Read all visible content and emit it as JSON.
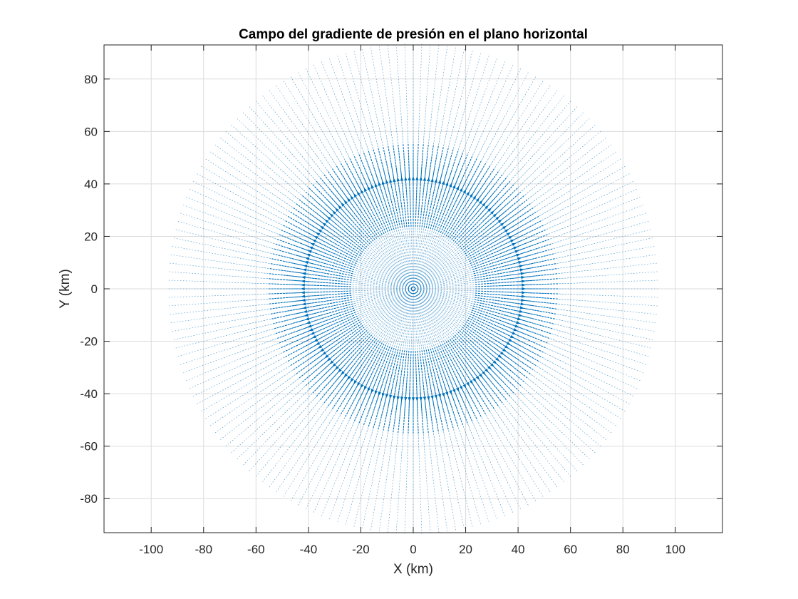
{
  "chart_data": {
    "type": "quiver",
    "title": "Campo del gradiente de presión en el plano horizontal",
    "xlabel": "X (km)",
    "ylabel": "Y (km)",
    "xlim": [
      -118,
      118
    ],
    "ylim": [
      -93,
      93
    ],
    "xticks": [
      -100,
      -80,
      -60,
      -40,
      -20,
      0,
      20,
      40,
      60,
      80,
      100
    ],
    "yticks": [
      -80,
      -60,
      -40,
      -20,
      0,
      20,
      40,
      60,
      80
    ],
    "xtick_labels": [
      "-100",
      "-80",
      "-60",
      "-40",
      "-20",
      "0",
      "20",
      "40",
      "60",
      "80",
      "100"
    ],
    "ytick_labels": [
      "-80",
      "-60",
      "-40",
      "-20",
      "0",
      "20",
      "40",
      "60",
      "80"
    ],
    "grid": true,
    "box": true,
    "vector_color": "#0072BD",
    "field": {
      "geometry": "polar",
      "radial_spokes": 180,
      "radius_max": 93,
      "peak_radius": 43,
      "direction": "radial outward"
    }
  }
}
